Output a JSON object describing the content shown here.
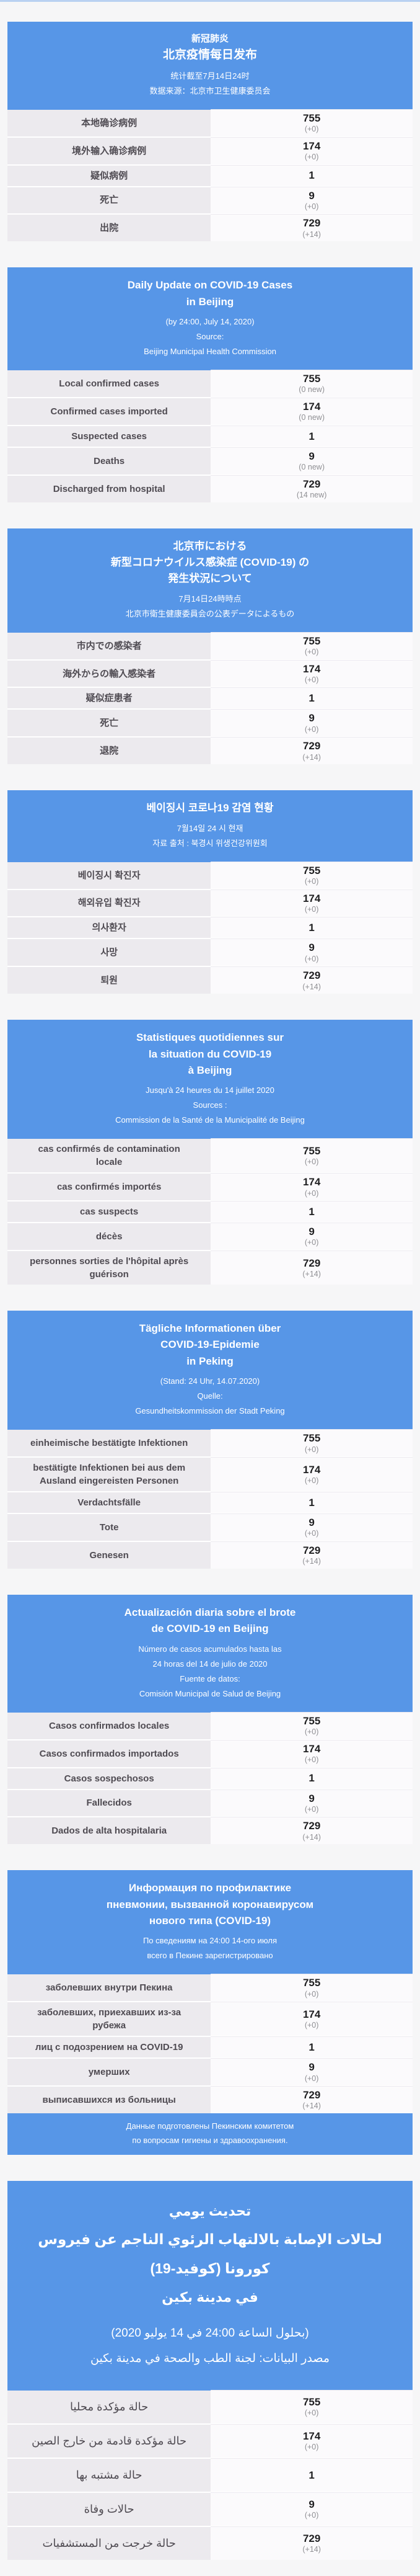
{
  "page": {
    "accent_color": "#5796e7",
    "background_color": "#f6f6f7",
    "top_bar_color": "#b9d1f1",
    "label_cell_color": "#eceaee",
    "value_cell_color": "#fbfafc",
    "label_text_color": "#4f4b52",
    "value_text_color": "#1f1f21",
    "delta_text_color": "#8f8f93"
  },
  "stats": {
    "local_confirmed": "755",
    "imported_confirmed": "174",
    "suspected": "1",
    "deaths": "9",
    "discharged": "729",
    "discharged_new": "14"
  },
  "sections": [
    {
      "id": "zh",
      "lang": "zh",
      "title_lines": [
        "新冠肺炎",
        "北京疫情每日发布"
      ],
      "subtitle_lines": [
        "统计截至7月14日24时",
        "数据来源：北京市卫生健康委员会"
      ],
      "rows": [
        {
          "label": "本地确诊病例",
          "value": "755",
          "delta": "(+0)"
        },
        {
          "label": "境外输入确诊病例",
          "value": "174",
          "delta": "(+0)"
        },
        {
          "label": "疑似病例",
          "value": "1",
          "delta": ""
        },
        {
          "label": "死亡",
          "value": "9",
          "delta": "(+0)"
        },
        {
          "label": "出院",
          "value": "729",
          "delta": "(+14)"
        }
      ]
    },
    {
      "id": "en",
      "lang": "en",
      "title_lines": [
        "Daily Update on COVID-19 Cases",
        "in Beijing"
      ],
      "subtitle_lines": [
        "(by 24:00, July 14, 2020)",
        "Source:",
        "Beijing Municipal Health Commission"
      ],
      "rows": [
        {
          "label": "Local confirmed cases",
          "value": "755",
          "delta": "(0 new)"
        },
        {
          "label": "Confirmed cases imported",
          "value": "174",
          "delta": "(0 new)"
        },
        {
          "label": "Suspected cases",
          "value": "1",
          "delta": ""
        },
        {
          "label": "Deaths",
          "value": "9",
          "delta": "(0 new)"
        },
        {
          "label": "Discharged from hospital",
          "value": "729",
          "delta": "(14 new)"
        }
      ]
    },
    {
      "id": "ja",
      "lang": "ja",
      "title_lines": [
        "北京市における",
        "新型コロナウイルス感染症 (COVID-19) の",
        "発生状況について"
      ],
      "subtitle_lines": [
        "7月14日24時時点",
        "北京市衛生健康委員会の公表データによるもの"
      ],
      "rows": [
        {
          "label": "市内での感染者",
          "value": "755",
          "delta": "(+0)"
        },
        {
          "label": "海外からの輸入感染者",
          "value": "174",
          "delta": "(+0)"
        },
        {
          "label": "疑似症患者",
          "value": "1",
          "delta": ""
        },
        {
          "label": "死亡",
          "value": "9",
          "delta": "(+0)"
        },
        {
          "label": "退院",
          "value": "729",
          "delta": "(+14)"
        }
      ]
    },
    {
      "id": "ko",
      "lang": "ko",
      "title_lines": [
        "베이징시 코로나19 감염 현황"
      ],
      "subtitle_lines": [
        "7월14일 24 시 현재",
        "자료 출처 : 북경시 위생건강위원회"
      ],
      "rows": [
        {
          "label": "베이징시 확진자",
          "value": "755",
          "delta": "(+0)"
        },
        {
          "label": "해외유입 확진자",
          "value": "174",
          "delta": "(+0)"
        },
        {
          "label": "의사환자",
          "value": "1",
          "delta": ""
        },
        {
          "label": "사망",
          "value": "9",
          "delta": "(+0)"
        },
        {
          "label": "퇴원",
          "value": "729",
          "delta": "(+14)"
        }
      ]
    },
    {
      "id": "fr",
      "lang": "fr",
      "title_lines": [
        "Statistiques quotidiennes sur",
        "la situation du COVID-19",
        "à Beijing"
      ],
      "subtitle_lines": [
        "Jusqu'à 24 heures du 14 juillet 2020",
        "Sources :",
        "Commission de la Santé de la Municipalité de Beijing"
      ],
      "rows": [
        {
          "label": "cas confirmés de contamination locale",
          "value": "755",
          "delta": "(+0)"
        },
        {
          "label": "cas confirmés importés",
          "value": "174",
          "delta": "(+0)"
        },
        {
          "label": "cas suspects",
          "value": "1",
          "delta": ""
        },
        {
          "label": "décès",
          "value": "9",
          "delta": "(+0)"
        },
        {
          "label": "personnes sorties de l'hôpital après guérison",
          "value": "729",
          "delta": "(+14)"
        }
      ]
    },
    {
      "id": "de",
      "lang": "de",
      "title_lines": [
        "Tägliche Informationen über",
        "COVID-19-Epidemie",
        "in Peking"
      ],
      "subtitle_lines": [
        "(Stand: 24 Uhr, 14.07.2020)",
        "Quelle:",
        "Gesundheitskommission der Stadt Peking"
      ],
      "rows": [
        {
          "label": "einheimische bestätigte Infektionen",
          "value": "755",
          "delta": "(+0)"
        },
        {
          "label": "bestätigte Infektionen bei aus dem Ausland eingereisten Personen",
          "value": "174",
          "delta": "(+0)"
        },
        {
          "label": "Verdachtsfälle",
          "value": "1",
          "delta": ""
        },
        {
          "label": "Tote",
          "value": "9",
          "delta": "(+0)"
        },
        {
          "label": "Genesen",
          "value": "729",
          "delta": "(+14)"
        }
      ]
    },
    {
      "id": "es",
      "lang": "es",
      "title_lines": [
        "Actualización diaria sobre el brote",
        "de COVID-19 en Beijing"
      ],
      "subtitle_lines": [
        "Número de casos acumulados hasta las",
        "24 horas del 14 de julio de 2020",
        "Fuente de datos:",
        "Comisión Municipal de Salud de Beijing"
      ],
      "rows": [
        {
          "label": "Casos confirmados locales",
          "value": "755",
          "delta": "(+0)"
        },
        {
          "label": "Casos confirmados importados",
          "value": "174",
          "delta": "(+0)"
        },
        {
          "label": "Casos sospechosos",
          "value": "1",
          "delta": ""
        },
        {
          "label": "Fallecidos",
          "value": "9",
          "delta": "(+0)"
        },
        {
          "label": "Dados de alta hospitalaria",
          "value": "729",
          "delta": "(+14)"
        }
      ]
    },
    {
      "id": "ru",
      "lang": "ru",
      "title_lines": [
        "Информация по профилактике",
        "пневмонии, вызванной коронавирусом",
        "нового типа (COVID-19)"
      ],
      "subtitle_lines": [
        "По сведениям на 24:00 14-ого июля",
        "всего в Пекине зарегистрировано"
      ],
      "rows": [
        {
          "label": "заболевших внутри Пекина",
          "value": "755",
          "delta": "(+0)"
        },
        {
          "label": "заболевших, приехавших из-за рубежа",
          "value": "174",
          "delta": "(+0)"
        },
        {
          "label": "лиц с подозрением на COVID-19",
          "value": "1",
          "delta": ""
        },
        {
          "label": "умерших",
          "value": "9",
          "delta": "(+0)"
        },
        {
          "label": "выписавшихся из больницы",
          "value": "729",
          "delta": "(+14)"
        }
      ],
      "footer_lines": [
        "Данные подготовлены Пекинским комитетом",
        "по вопросам гигиены и здравоохранения."
      ]
    },
    {
      "id": "ar",
      "lang": "ar",
      "dir": "rtl",
      "title_lines": [
        "تحديث يومي",
        "لحالات الإصابة بالالتهاب الرئوي الناجم عن فيروس كورونا (كوفيد-19)",
        "في مدينة بكين"
      ],
      "subtitle_lines": [
        "(بحلول الساعة 24:00 في 14 يوليو 2020)",
        "مصدر البيانات: لجنة الطب والصحة في مدينة بكين"
      ],
      "rows": [
        {
          "label": "حالة مؤكدة محليا",
          "value": "755",
          "delta": "(+0)"
        },
        {
          "label": "حالة مؤكدة قادمة من خارج الصين",
          "value": "174",
          "delta": "(+0)"
        },
        {
          "label": "حالة مشتبه بها",
          "value": "1",
          "delta": ""
        },
        {
          "label": "حالات وفاة",
          "value": "9",
          "delta": "(+0)"
        },
        {
          "label": "حالة خرجت من المستشفيات",
          "value": "729",
          "delta": "(+14)"
        }
      ]
    }
  ]
}
